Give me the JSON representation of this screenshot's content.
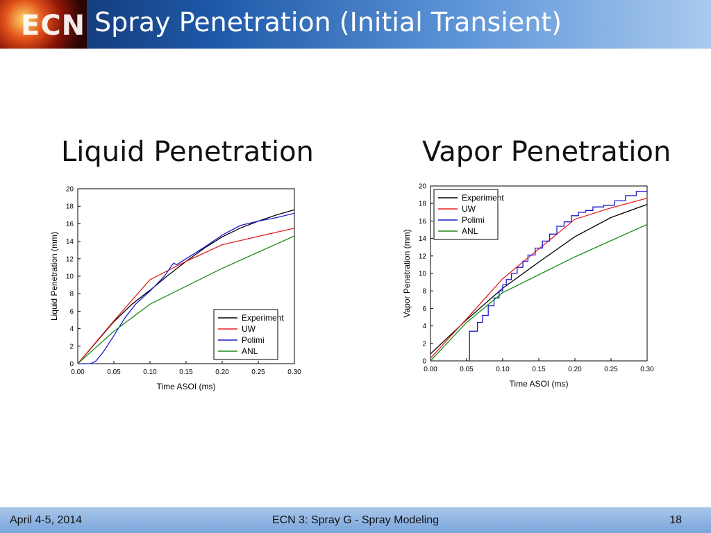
{
  "slide": {
    "title": "Spray Penetration (Initial Transient)",
    "logo_text": "ECN",
    "footer": {
      "left": "April 4-5, 2014",
      "center": "ECN 3: Spray G - Spray Modeling",
      "right": "18"
    }
  },
  "colors": {
    "Experiment": "#000000",
    "UW": "#e02020",
    "Polimi": "#1a1ad0",
    "ANL": "#1a8c1a"
  },
  "chart_data": [
    {
      "type": "line",
      "title": "Liquid Penetration",
      "xlabel": "Time ASOI (ms)",
      "ylabel": "Liquid Penetration (mm)",
      "xlim": [
        0,
        0.3
      ],
      "ylim": [
        0,
        20
      ],
      "xticks": [
        "0.00",
        "0.05",
        "0.10",
        "0.15",
        "0.20",
        "0.25",
        "0.30"
      ],
      "yticks": [
        "0",
        "2",
        "4",
        "6",
        "8",
        "10",
        "12",
        "14",
        "16",
        "18",
        "20"
      ],
      "legend": "lower-right",
      "series": [
        {
          "name": "Experiment",
          "x": [
            0,
            0.025,
            0.05,
            0.075,
            0.1,
            0.125,
            0.15,
            0.175,
            0.2,
            0.225,
            0.25,
            0.275,
            0.3
          ],
          "y": [
            0,
            2.4,
            4.8,
            6.8,
            8.4,
            10.1,
            11.7,
            13.2,
            14.5,
            15.5,
            16.3,
            17.0,
            17.6
          ]
        },
        {
          "name": "UW",
          "x": [
            0,
            0.05,
            0.1,
            0.15,
            0.2,
            0.3
          ],
          "y": [
            0,
            4.9,
            9.6,
            11.7,
            13.6,
            15.5
          ]
        },
        {
          "name": "Polimi",
          "x": [
            0,
            0.018,
            0.025,
            0.035,
            0.05,
            0.065,
            0.08,
            0.1,
            0.12,
            0.13,
            0.133,
            0.137,
            0.15,
            0.175,
            0.2,
            0.225,
            0.25,
            0.275,
            0.3
          ],
          "y": [
            0,
            0,
            0.3,
            1.3,
            3.2,
            5.2,
            6.8,
            8.3,
            10.0,
            11.2,
            11.5,
            11.3,
            12.0,
            13.3,
            14.7,
            15.8,
            16.3,
            16.7,
            17.2
          ]
        },
        {
          "name": "ANL",
          "x": [
            0,
            0.05,
            0.1,
            0.2,
            0.3
          ],
          "y": [
            0,
            3.7,
            6.8,
            10.9,
            14.6
          ]
        }
      ]
    },
    {
      "type": "line",
      "title": "Vapor Penetration",
      "xlabel": "Time ASOI (ms)",
      "ylabel": "Vapor Penetration (mm)",
      "xlim": [
        0,
        0.3
      ],
      "ylim": [
        0,
        20
      ],
      "xticks": [
        "0.00",
        "0.05",
        "0.10",
        "0.15",
        "0.20",
        "0.25",
        "0.30"
      ],
      "yticks": [
        "0",
        "2",
        "4",
        "6",
        "8",
        "10",
        "12",
        "14",
        "16",
        "18",
        "20"
      ],
      "legend": "upper-left",
      "series": [
        {
          "name": "Experiment",
          "x": [
            0,
            0.05,
            0.1,
            0.15,
            0.2,
            0.25,
            0.3
          ],
          "y": [
            0.8,
            4.7,
            8.3,
            11.3,
            14.2,
            16.4,
            17.9
          ]
        },
        {
          "name": "UW",
          "x": [
            0,
            0.05,
            0.1,
            0.15,
            0.2,
            0.25,
            0.3
          ],
          "y": [
            0.3,
            4.8,
            9.4,
            12.8,
            16.2,
            17.5,
            18.6
          ]
        },
        {
          "name": "Polimi",
          "step": true,
          "x": [
            0.054,
            0.054,
            0.065,
            0.072,
            0.08,
            0.088,
            0.095,
            0.1,
            0.105,
            0.112,
            0.12,
            0.128,
            0.135,
            0.145,
            0.155,
            0.165,
            0.175,
            0.185,
            0.195,
            0.205,
            0.215,
            0.225,
            0.24,
            0.255,
            0.27,
            0.285,
            0.3
          ],
          "y": [
            0,
            3.4,
            4.4,
            5.2,
            6.3,
            7.2,
            8.0,
            8.7,
            9.3,
            10.0,
            10.7,
            11.4,
            12.1,
            12.9,
            13.7,
            14.5,
            15.4,
            15.9,
            16.6,
            17.0,
            17.2,
            17.6,
            17.8,
            18.3,
            18.9,
            19.4,
            19.5
          ]
        },
        {
          "name": "ANL",
          "x": [
            0,
            0.05,
            0.1,
            0.2,
            0.3
          ],
          "y": [
            0,
            4.4,
            7.8,
            11.9,
            15.6
          ]
        }
      ]
    }
  ]
}
